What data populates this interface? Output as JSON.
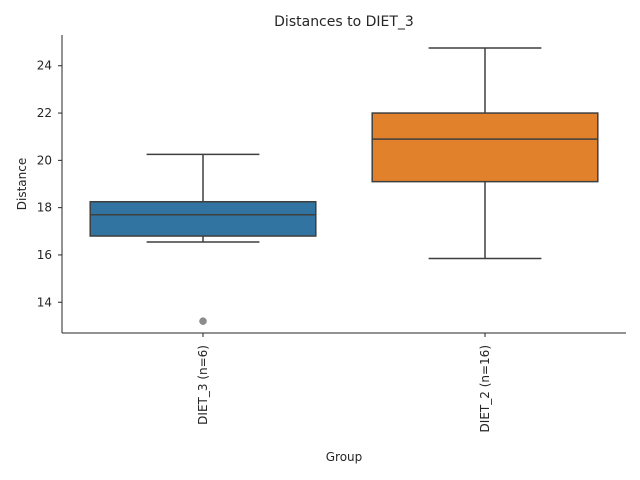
{
  "chart_data": {
    "type": "box",
    "title": "Distances to DIET_3",
    "xlabel": "Group",
    "ylabel": "Distance",
    "ylim": [
      12.7,
      25.3
    ],
    "yticks": [
      14,
      16,
      18,
      20,
      22,
      24
    ],
    "grid": false,
    "categories": [
      "DIET_3 (n=6)",
      "DIET_2 (n=16)"
    ],
    "boxes": [
      {
        "name": "DIET_3 (n=6)",
        "color": "#3274a1",
        "whisker_low": 16.55,
        "q1": 16.8,
        "median": 17.7,
        "q3": 18.25,
        "whisker_high": 20.25,
        "outliers": [
          13.2
        ]
      },
      {
        "name": "DIET_2 (n=16)",
        "color": "#e1812c",
        "whisker_low": 15.85,
        "q1": 19.1,
        "median": 20.9,
        "q3": 22.0,
        "whisker_high": 24.75,
        "outliers": []
      }
    ]
  }
}
